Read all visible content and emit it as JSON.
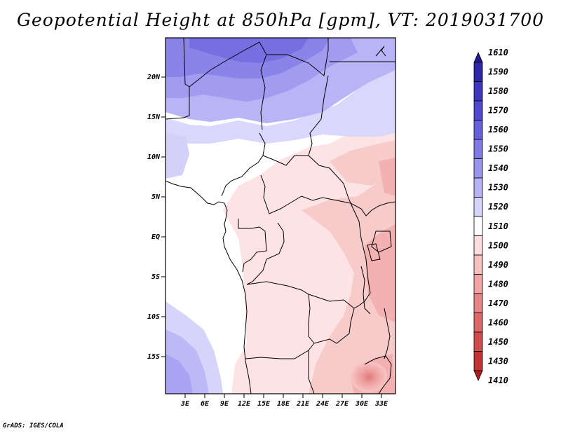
{
  "title": "Geopotential Height at 850hPa [gpm], VT: 2019031700",
  "credit": "GrADS: IGES/COLA",
  "axes": {
    "lat_labels": [
      "20N",
      "15N",
      "10N",
      "5N",
      "EQ",
      "5S",
      "10S",
      "15S"
    ],
    "lon_labels": [
      "3E",
      "6E",
      "9E",
      "12E",
      "15E",
      "18E",
      "21E",
      "24E",
      "27E",
      "30E",
      "33E"
    ]
  },
  "colorbar": {
    "labels": [
      "1610",
      "1590",
      "1580",
      "1570",
      "1560",
      "1550",
      "1540",
      "1530",
      "1520",
      "1510",
      "1500",
      "1490",
      "1480",
      "1470",
      "1460",
      "1450",
      "1430",
      "1410"
    ],
    "colors": [
      "#211a8f",
      "#2e27a8",
      "#3d37bd",
      "#4f49cf",
      "#6660dc",
      "#807ae6",
      "#9a95ee",
      "#b6b2f5",
      "#d6d4fa",
      "#ffffff",
      "#fcdcdc",
      "#f7c0c0",
      "#f0a4a4",
      "#e78686",
      "#dd6868",
      "#d14c4c",
      "#c33333",
      "#b01c1c"
    ]
  }
}
